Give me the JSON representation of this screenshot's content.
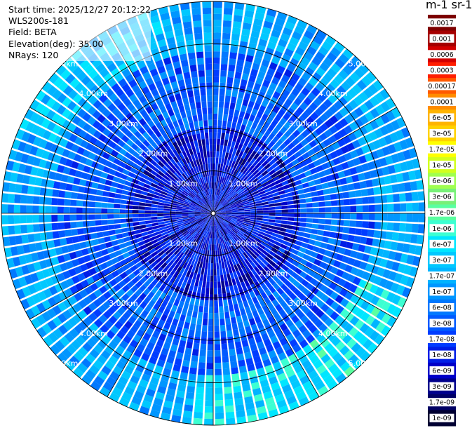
{
  "info": {
    "start_time": "Start time: 2025/12/27 20:12:22",
    "instrument": "WLS200s-181",
    "field": "Field: BETA",
    "elevation": "Elevation(deg): 35.00",
    "nrays": "NRays: 120"
  },
  "colorbar": {
    "units_title": "m-1 sr-1",
    "labels": [
      "0.0017",
      "0.001",
      "0.0006",
      "0.0003",
      "0.00017",
      "0.0001",
      "6e-05",
      "3e-05",
      "1.7e-05",
      "1e-05",
      "6e-06",
      "3e-06",
      "1.7e-06",
      "1e-06",
      "6e-07",
      "3e-07",
      "1.7e-07",
      "1e-07",
      "6e-08",
      "3e-08",
      "1.7e-08",
      "1e-08",
      "6e-09",
      "3e-09",
      "1.7e-09",
      "1e-09"
    ],
    "colors": [
      "#7d0000",
      "#a50000",
      "#d20000",
      "#ff1e00",
      "#ff5a00",
      "#ff8c00",
      "#ffb400",
      "#ffd200",
      "#ffff00",
      "#d2ff1e",
      "#a0ff50",
      "#78f078",
      "#5affa0",
      "#3cffd2",
      "#00e6ff",
      "#00c8ff",
      "#00b4ff",
      "#0096ff",
      "#0078ff",
      "#005aff",
      "#003cff",
      "#001ee6",
      "#0000c8",
      "#00008c",
      "#000064",
      "#000032"
    ]
  },
  "chart_data": {
    "type": "heatmap",
    "projection": "polar PPI",
    "rays": 120,
    "max_range_km": 5.0,
    "range_rings_km": [
      1.0,
      2.0,
      3.0,
      4.0,
      5.0
    ],
    "ring_labels": [
      "1.00km",
      "2.00km",
      "3.00km",
      "4.00km",
      "5.00km"
    ],
    "spoke_angles_deg": [
      0,
      30,
      60,
      90,
      120,
      150,
      180,
      210,
      240,
      270,
      300,
      330
    ],
    "color_scale": "log",
    "value_range": [
      1e-09,
      0.0017
    ],
    "typical_values": {
      "near_center": 1e-08,
      "mid_range": 4e-08,
      "outer_ring": 1.5e-07,
      "south_east_outer": 5e-07
    }
  }
}
